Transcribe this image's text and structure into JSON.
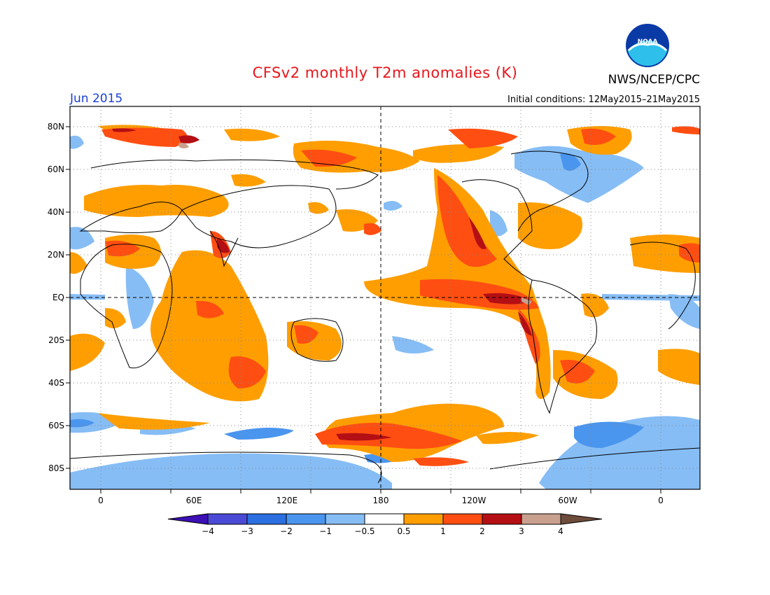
{
  "header": {
    "title": "CFSv2 monthly T2m anomalies (K)",
    "month": "Jun 2015",
    "agency": "NWS/NCEP/CPC",
    "initial_conditions": "Initial conditions: 12May2015–21May2015",
    "logo_text": "NOAA"
  },
  "map": {
    "lon_labels": [
      "0",
      "60E",
      "120E",
      "180",
      "120W",
      "60W",
      "0"
    ],
    "lat_labels": [
      "80N",
      "60N",
      "40N",
      "20N",
      "EQ",
      "20S",
      "40S",
      "60S",
      "80S"
    ]
  },
  "colorbar": {
    "labels": [
      "−4",
      "−3",
      "−2",
      "−1",
      "−0.5",
      "0.5",
      "1",
      "2",
      "3",
      "4"
    ],
    "colors": [
      "#3c10b4",
      "#4a4ad6",
      "#2b6fe0",
      "#4a95ee",
      "#86bdf5",
      "#ffffff",
      "#ff9e00",
      "#ff4e12",
      "#b40f14",
      "#c9a08e",
      "#6e4c3c"
    ]
  }
}
